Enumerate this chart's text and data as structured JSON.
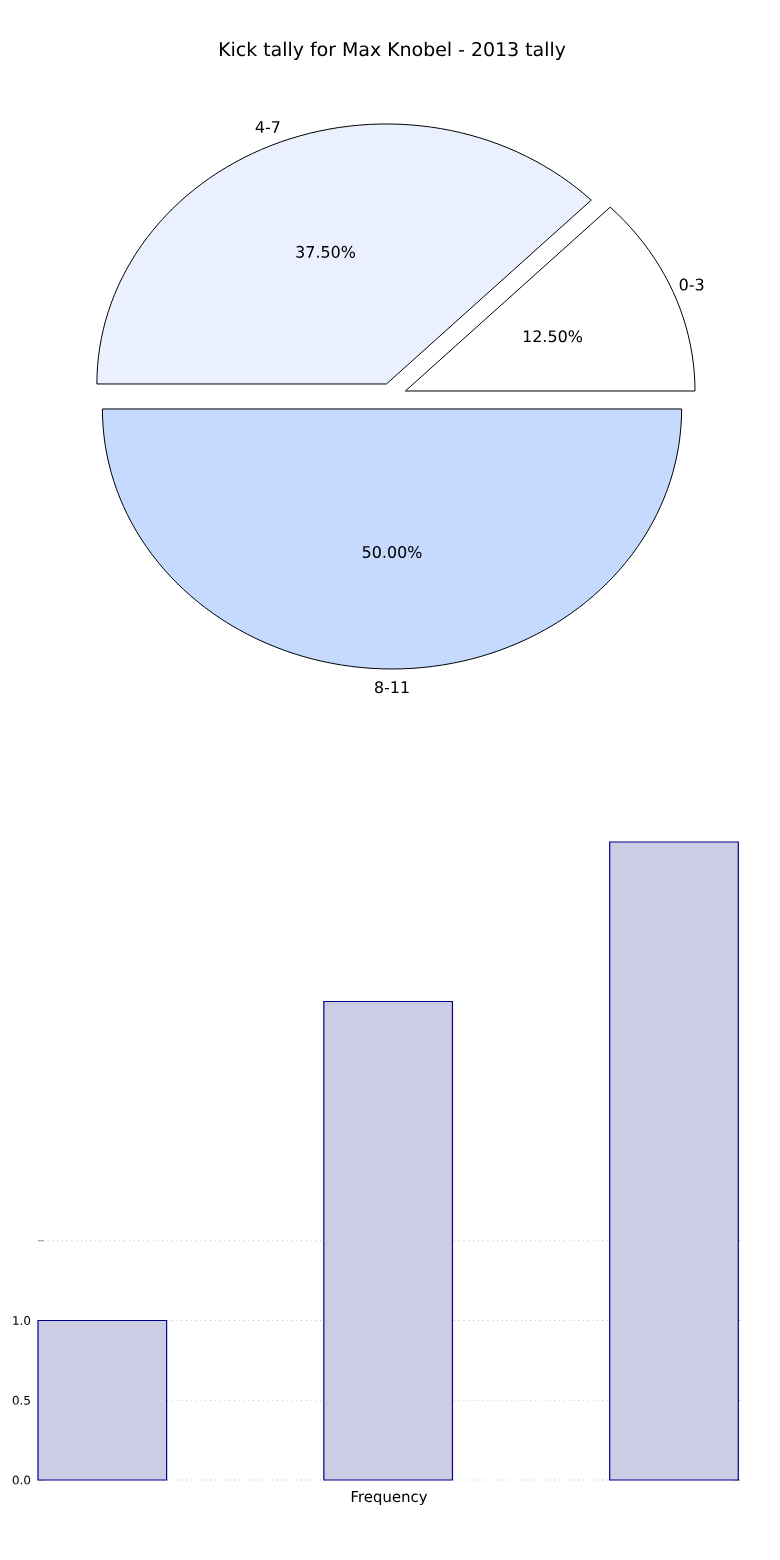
{
  "chart_data": [
    {
      "type": "pie",
      "title": "Kick tally for Max Knobel - 2013 tally",
      "categories": [
        "0-3",
        "4-7",
        "8-11"
      ],
      "values": [
        12.5,
        37.5,
        50
      ],
      "value_labels": [
        "12.50%",
        "37.50%",
        "50.00%"
      ],
      "colors": [
        "#ffffff",
        "#eaf0fd",
        "#c6d9ff"
      ]
    },
    {
      "type": "bar",
      "xlabel": "Frequency",
      "categories": [
        null,
        null,
        null
      ],
      "values": [
        1,
        3,
        4
      ],
      "color": "#cccce5",
      "ylim": [
        0,
        4
      ],
      "yticks": [
        {
          "value": 0,
          "label": "0.0"
        },
        {
          "value": 0.5,
          "label": "0.5"
        },
        {
          "value": 1.0,
          "label": "1.0"
        },
        {
          "value": 1.5,
          "label": null
        }
      ],
      "grid": "y"
    }
  ]
}
